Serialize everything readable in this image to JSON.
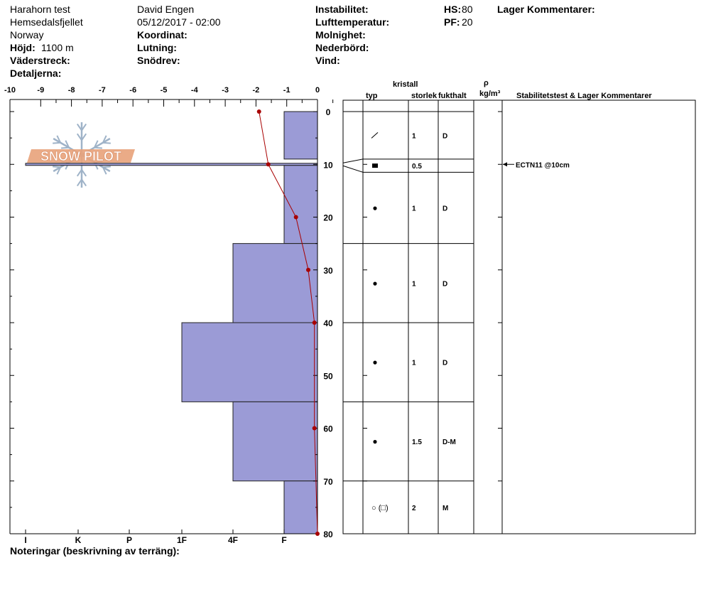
{
  "header": {
    "site": "Harahorn test",
    "location": "Hemsedalsfjellet",
    "country": "Norway",
    "elevation_label": "Höjd:",
    "elevation_value": "1100 m",
    "aspect_label": "Väderstreck:",
    "details_label": "Detaljerna:",
    "observer": "David Engen",
    "datetime": "05/12/2017 - 02:00",
    "coord_label": "Koordinat:",
    "slope_label": "Lutning:",
    "drift_label": "Snödrev:",
    "instability_label": "Instabilitet:",
    "airtemp_label": "Lufttemperatur:",
    "sky_label": "Molnighet:",
    "precip_label": "Nederbörd:",
    "wind_label": "Vind:",
    "hs_label": "HS:",
    "hs_value": "80",
    "pf_label": "PF:",
    "pf_value": "20",
    "layer_comments_label": "Lager Kommentarer:"
  },
  "columns": {
    "kristall": "kristall",
    "typ": "typ",
    "storlek": "storlek",
    "fukthalt": "fukthalt",
    "rho": "ρ",
    "density_unit": "kg/m³",
    "stability": "Stabilitetstest & Lager Kommentarer"
  },
  "logo_text": "SNOW PILOT",
  "footer_note_label": "Noteringar (beskrivning av terräng):",
  "stability_test": "ECTN11 @10cm",
  "layers": [
    {
      "symbol": "╱",
      "size": "1",
      "wetness": "D"
    },
    {
      "symbol": "■",
      "size": "0.5",
      "wetness": ""
    },
    {
      "symbol": "●",
      "size": "1",
      "wetness": "D"
    },
    {
      "symbol": "●",
      "size": "1",
      "wetness": "D"
    },
    {
      "symbol": "●",
      "size": "1",
      "wetness": "D"
    },
    {
      "symbol": "●",
      "size": "1.5",
      "wetness": "D-M"
    },
    {
      "symbol": "○ (□)",
      "size": "2",
      "wetness": "M"
    }
  ],
  "colors": {
    "hardness_fill": "#9b9bd6",
    "temperature_line": "#a80000",
    "logo_orange": "#e8a27a",
    "logo_blue": "#9fb3c8"
  },
  "chart_data": {
    "type": "bar",
    "x_ticks": [
      "-10",
      "-9",
      "-8",
      "-7",
      "-6",
      "-5",
      "-4",
      "-3",
      "-2",
      "-1",
      "0"
    ],
    "xlim": [
      -10,
      0
    ],
    "y_ticks": [
      "0",
      "10",
      "20",
      "30",
      "40",
      "50",
      "60",
      "70",
      "80"
    ],
    "ylim": [
      0,
      80
    ],
    "hardness_ticks": [
      "I",
      "K",
      "P",
      "1F",
      "4F",
      "F"
    ],
    "hardness_layers": [
      {
        "top": 0,
        "bottom": 9,
        "hardness": "F"
      },
      {
        "top": 9.8,
        "bottom": 10.2,
        "hardness": "I"
      },
      {
        "top": 10.2,
        "bottom": 25,
        "hardness": "F"
      },
      {
        "top": 25,
        "bottom": 40,
        "hardness": "4F"
      },
      {
        "top": 40,
        "bottom": 55,
        "hardness": "1F"
      },
      {
        "top": 55,
        "bottom": 70,
        "hardness": "4F"
      },
      {
        "top": 70,
        "bottom": 80,
        "hardness": "F"
      }
    ],
    "layer_boundaries": [
      9,
      11.5,
      25,
      40,
      55,
      70
    ],
    "temperature_profile": {
      "depth": [
        0,
        10,
        20,
        30,
        40,
        60,
        80
      ],
      "temp": [
        -1.9,
        -1.6,
        -0.7,
        -0.3,
        -0.1,
        -0.1,
        0
      ]
    }
  }
}
